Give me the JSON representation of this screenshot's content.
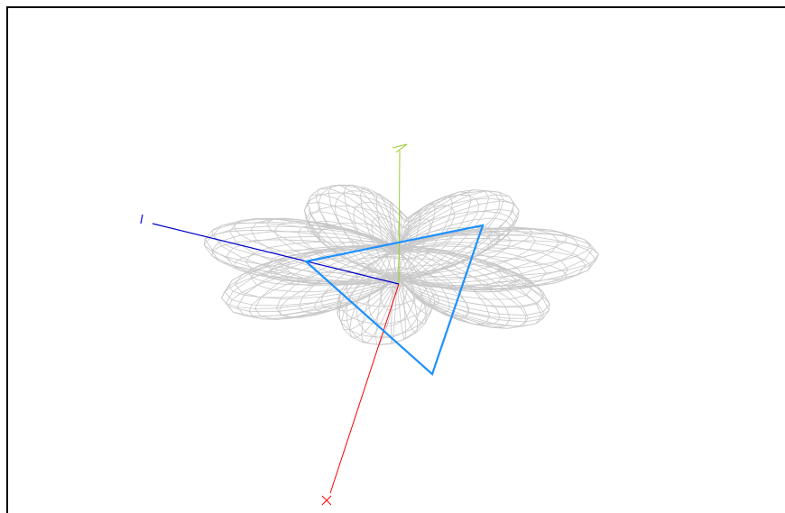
{
  "viewer": {
    "colors": {
      "background": "#ffffff",
      "frame": "#000000",
      "mesh": "#c8c8c8",
      "triangle": "#1e90ff",
      "axis_x": "#ff0000",
      "axis_y": "#9acd32",
      "axis_z": "#0000cd"
    },
    "surface": {
      "type": "wireframe-polar-surface",
      "lobes": 7
    },
    "axes": [
      {
        "name": "x",
        "label": "x"
      },
      {
        "name": "y",
        "label": "y"
      },
      {
        "name": "z",
        "label": "z"
      }
    ],
    "triangle": {
      "vertices": 3
    }
  }
}
